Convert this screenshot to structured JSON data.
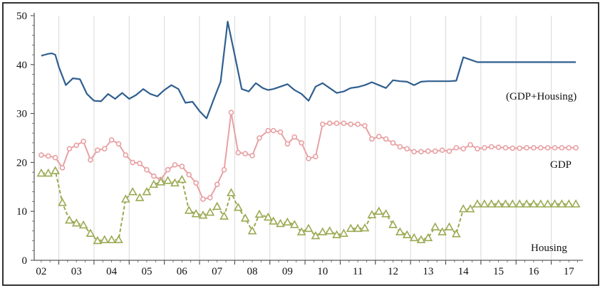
{
  "chart_data": {
    "type": "line",
    "title": "",
    "xlabel": "",
    "ylabel": "",
    "ylim": [
      0,
      50
    ],
    "yticks": [
      "0",
      "10",
      "20",
      "30",
      "40",
      "50"
    ],
    "x_tick_labels": [
      "02",
      "03",
      "04",
      "05",
      "06",
      "07",
      "08",
      "09",
      "10",
      "11",
      "12",
      "13",
      "14",
      "15",
      "16",
      "17"
    ],
    "grid": "vertical",
    "legend": "inline labels next to series",
    "series": [
      {
        "name": "(GDP+Housing)",
        "color": "#2f5f8f",
        "marker": "none",
        "line_style": "solid",
        "x": [
          2002.0,
          2002.1,
          2002.2,
          2002.3,
          2002.4,
          2002.5,
          2002.7,
          2002.9,
          2003.1,
          2003.3,
          2003.5,
          2003.7,
          2003.9,
          2004.1,
          2004.3,
          2004.5,
          2004.7,
          2004.9,
          2005.1,
          2005.3,
          2005.5,
          2005.7,
          2005.9,
          2006.1,
          2006.3,
          2006.5,
          2006.7,
          2006.9,
          2007.1,
          2007.3,
          2007.5,
          2007.7,
          2007.9,
          2008.1,
          2008.3,
          2008.45,
          2008.6,
          2008.8,
          2009.0,
          2009.2,
          2009.4,
          2009.6,
          2009.8,
          2010.0,
          2010.2,
          2010.4,
          2010.6,
          2010.8,
          2011.0,
          2011.2,
          2011.4,
          2011.6,
          2011.8,
          2012.0,
          2012.2,
          2012.4,
          2012.6,
          2012.8,
          2013.0,
          2013.2,
          2013.4,
          2013.6,
          2013.8,
          2014.0,
          2014.2,
          2014.4,
          2014.6,
          2014.8,
          2015.0,
          2015.2,
          2015.4,
          2015.6,
          2015.8,
          2016.0,
          2016.2,
          2016.4,
          2016.6,
          2016.8,
          2017.0,
          2017.2
        ],
        "values": [
          41.8,
          42.0,
          42.2,
          42.3,
          42.0,
          39.5,
          35.8,
          37.2,
          37.0,
          34.0,
          32.6,
          32.5,
          34.0,
          33.0,
          34.2,
          33.0,
          33.8,
          35.0,
          34.0,
          33.5,
          34.8,
          35.8,
          35.0,
          32.2,
          32.4,
          30.5,
          29.0,
          32.8,
          36.5,
          48.8,
          42.0,
          35.0,
          34.5,
          36.2,
          35.2,
          34.8,
          35.0,
          35.5,
          36.0,
          34.8,
          34.0,
          32.6,
          35.5,
          36.2,
          35.2,
          34.2,
          34.5,
          35.2,
          35.4,
          35.8,
          36.4,
          35.8,
          35.2,
          36.8,
          36.6,
          36.5,
          35.8,
          36.5,
          36.6,
          36.6,
          36.6,
          36.6,
          36.7,
          41.5,
          41.0,
          40.5,
          40.5,
          40.5,
          40.5,
          40.5,
          40.5,
          40.5,
          40.5,
          40.5,
          40.5,
          40.5,
          40.5,
          40.5,
          40.5,
          40.5
        ]
      },
      {
        "name": "GDP",
        "color": "#e8a1a4",
        "marker": "circle",
        "line_style": "solid",
        "x": [
          2002.0,
          2002.2,
          2002.4,
          2002.6,
          2002.8,
          2003.0,
          2003.2,
          2003.4,
          2003.6,
          2003.8,
          2004.0,
          2004.2,
          2004.4,
          2004.6,
          2004.8,
          2005.0,
          2005.2,
          2005.4,
          2005.6,
          2005.8,
          2006.0,
          2006.2,
          2006.4,
          2006.6,
          2006.8,
          2007.0,
          2007.2,
          2007.4,
          2007.6,
          2007.8,
          2008.0,
          2008.2,
          2008.45,
          2008.6,
          2008.8,
          2009.0,
          2009.2,
          2009.4,
          2009.6,
          2009.8,
          2010.0,
          2010.2,
          2010.4,
          2010.6,
          2010.8,
          2011.0,
          2011.2,
          2011.4,
          2011.6,
          2011.8,
          2012.0,
          2012.2,
          2012.4,
          2012.6,
          2012.8,
          2013.0,
          2013.2,
          2013.4,
          2013.6,
          2013.8,
          2014.0,
          2014.2,
          2014.4,
          2014.6,
          2014.8,
          2015.0,
          2015.2,
          2015.4,
          2015.6,
          2015.8,
          2016.0,
          2016.2,
          2016.4,
          2016.6,
          2016.8,
          2017.0,
          2017.2
        ],
        "values": [
          21.5,
          21.3,
          21.0,
          18.9,
          22.8,
          23.5,
          24.3,
          20.5,
          22.5,
          22.8,
          24.6,
          23.8,
          21.5,
          20.0,
          19.8,
          18.5,
          17.2,
          16.5,
          18.5,
          19.5,
          19.2,
          17.5,
          15.8,
          12.5,
          12.8,
          15.5,
          18.5,
          30.2,
          22.0,
          21.8,
          21.4,
          25.0,
          26.5,
          26.5,
          26.2,
          23.8,
          25.2,
          24.0,
          20.8,
          21.2,
          27.8,
          28.0,
          28.0,
          28.0,
          27.8,
          27.8,
          27.5,
          24.8,
          25.3,
          24.8,
          24.0,
          23.2,
          22.8,
          22.2,
          22.2,
          22.3,
          22.3,
          22.5,
          22.3,
          23.0,
          22.8,
          23.6,
          22.8,
          23.0,
          23.2,
          23.1,
          23.0,
          22.9,
          22.9,
          23.0,
          23.0,
          23.0,
          23.0,
          23.0,
          23.0,
          23.0,
          23.0
        ]
      },
      {
        "name": "Housing",
        "color": "#9aaa52",
        "marker": "triangle",
        "line_style": "dashed",
        "x": [
          2002.0,
          2002.2,
          2002.4,
          2002.6,
          2002.8,
          2003.0,
          2003.2,
          2003.4,
          2003.6,
          2003.8,
          2004.0,
          2004.2,
          2004.4,
          2004.6,
          2004.8,
          2005.0,
          2005.2,
          2005.4,
          2005.6,
          2005.8,
          2006.0,
          2006.2,
          2006.4,
          2006.6,
          2006.8,
          2007.0,
          2007.2,
          2007.4,
          2007.6,
          2007.8,
          2008.0,
          2008.2,
          2008.45,
          2008.6,
          2008.8,
          2009.0,
          2009.2,
          2009.4,
          2009.6,
          2009.8,
          2010.0,
          2010.2,
          2010.4,
          2010.6,
          2010.8,
          2011.0,
          2011.2,
          2011.4,
          2011.6,
          2011.8,
          2012.0,
          2012.2,
          2012.4,
          2012.6,
          2012.8,
          2013.0,
          2013.2,
          2013.4,
          2013.6,
          2013.8,
          2014.0,
          2014.2,
          2014.4,
          2014.6,
          2014.8,
          2015.0,
          2015.2,
          2015.4,
          2015.6,
          2015.8,
          2016.0,
          2016.2,
          2016.4,
          2016.6,
          2016.8,
          2017.0,
          2017.2
        ],
        "values": [
          17.8,
          17.8,
          18.3,
          11.8,
          8.2,
          7.6,
          7.2,
          5.5,
          4.0,
          4.2,
          4.2,
          4.2,
          12.5,
          14.0,
          12.8,
          14.0,
          15.5,
          16.0,
          16.3,
          15.8,
          16.5,
          10.2,
          9.5,
          9.2,
          9.8,
          11.0,
          9.0,
          13.8,
          10.8,
          8.6,
          6.0,
          9.4,
          8.8,
          8.0,
          7.5,
          7.8,
          7.3,
          5.8,
          6.5,
          5.0,
          5.8,
          6.0,
          5.2,
          5.5,
          6.5,
          6.5,
          6.6,
          9.3,
          10.0,
          9.5,
          7.3,
          5.8,
          5.2,
          4.6,
          4.2,
          4.6,
          6.8,
          5.8,
          6.8,
          5.4,
          10.5,
          10.5,
          11.5,
          11.5,
          11.5,
          11.5,
          11.5,
          11.5,
          11.5,
          11.5,
          11.5,
          11.5,
          11.5,
          11.5,
          11.5,
          11.5,
          11.5
        ]
      }
    ],
    "series_labels": [
      "(GDP+Housing)",
      "GDP",
      "Housing"
    ]
  }
}
